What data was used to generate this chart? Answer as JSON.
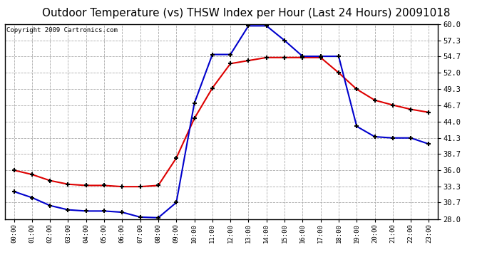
{
  "title": "Outdoor Temperature (vs) THSW Index per Hour (Last 24 Hours) 20091018",
  "copyright": "Copyright 2009 Cartronics.com",
  "hours": [
    "00:00",
    "01:00",
    "02:00",
    "03:00",
    "04:00",
    "05:00",
    "06:00",
    "07:00",
    "08:00",
    "09:00",
    "10:00",
    "11:00",
    "12:00",
    "13:00",
    "14:00",
    "15:00",
    "16:00",
    "17:00",
    "18:00",
    "19:00",
    "20:00",
    "21:00",
    "22:00",
    "23:00"
  ],
  "temp_red": [
    36.0,
    35.3,
    34.3,
    33.7,
    33.5,
    33.5,
    33.3,
    33.3,
    33.5,
    38.0,
    44.5,
    49.5,
    53.5,
    54.0,
    54.5,
    54.5,
    54.5,
    54.5,
    52.0,
    49.3,
    47.5,
    46.7,
    46.0,
    45.5
  ],
  "thsw_blue": [
    32.5,
    31.5,
    30.2,
    29.5,
    29.3,
    29.3,
    29.1,
    28.3,
    28.2,
    30.7,
    47.0,
    55.0,
    55.0,
    59.7,
    59.7,
    57.3,
    54.7,
    54.7,
    54.7,
    43.2,
    41.5,
    41.3,
    41.3,
    40.3
  ],
  "ylim_min": 28.0,
  "ylim_max": 60.0,
  "yticks": [
    28.0,
    30.7,
    33.3,
    36.0,
    38.7,
    41.3,
    44.0,
    46.7,
    49.3,
    52.0,
    54.7,
    57.3,
    60.0
  ],
  "bg_color": "#ffffff",
  "grid_color": "#aaaaaa",
  "line_color_red": "#dd0000",
  "line_color_blue": "#0000cc",
  "title_fontsize": 11,
  "copyright_fontsize": 6.5
}
